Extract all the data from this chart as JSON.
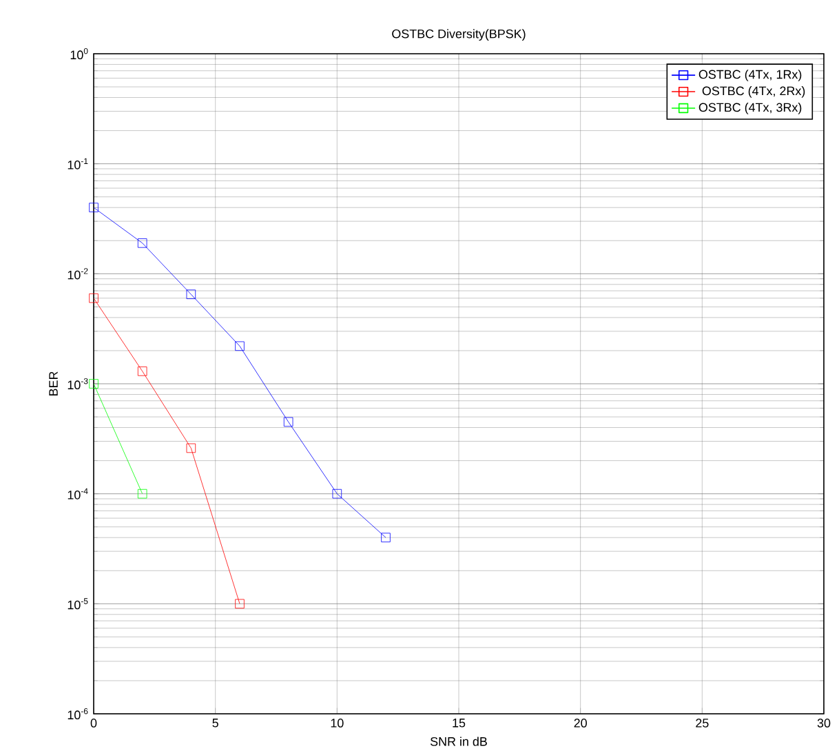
{
  "chart_data": {
    "type": "line",
    "title": "OSTBC Diversity(BPSK)",
    "xlabel": "SNR in dB",
    "ylabel": "BER",
    "log": "y",
    "grid": true,
    "legend": "top right",
    "marker": "square",
    "line_style": "solid",
    "xlim": [
      0,
      30
    ],
    "xticks": [
      0,
      5,
      10,
      15,
      20,
      25,
      30
    ],
    "ylim": [
      1e-06,
      1
    ],
    "yticks": [
      {
        "value": 1e-06,
        "label": "10$^{-6}$"
      },
      {
        "value": 1e-05,
        "label": "10$^{-5}$"
      },
      {
        "value": 0.0001,
        "label": "10$^{-4}$"
      },
      {
        "value": 0.001,
        "label": "10$^{-3}$"
      },
      {
        "value": 0.01,
        "label": "10$^{-2}$"
      },
      {
        "value": 0.1,
        "label": "10$^{-1}$"
      },
      {
        "value": 1,
        "label": "10$^{0}$"
      }
    ],
    "series": [
      {
        "name": "OSTBC (4Tx, 1Rx)",
        "color": "#0000ff",
        "x": [
          0,
          2,
          4,
          6,
          8,
          10,
          12
        ],
        "values": [
          0.04,
          0.019,
          0.0065,
          0.0022,
          0.00045,
          0.0001,
          4e-05
        ]
      },
      {
        "name": " OSTBC (4Tx, 2Rx)",
        "color": "#ff0000",
        "x": [
          0,
          2,
          4,
          6
        ],
        "values": [
          0.006,
          0.0013,
          0.00026,
          1e-05
        ]
      },
      {
        "name": "OSTBC (4Tx, 3Rx)",
        "color": "#00ff00",
        "x": [
          0,
          2
        ],
        "values": [
          0.001,
          0.0001
        ]
      }
    ]
  }
}
